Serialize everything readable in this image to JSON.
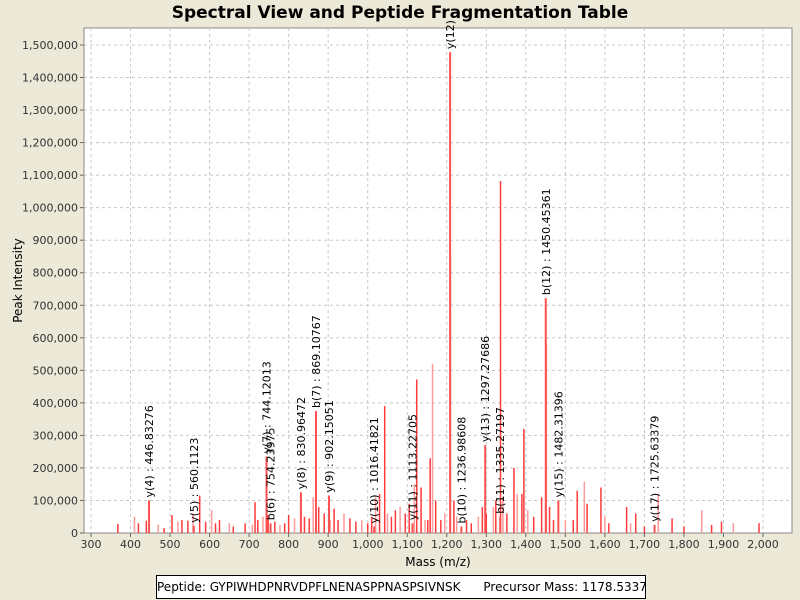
{
  "chart_data": {
    "type": "bar",
    "title": "Spectral View and Peptide Fragmentation Table",
    "xlabel": "Mass (m/z)",
    "ylabel": "Peak Intensity",
    "xlim": [
      280,
      2070
    ],
    "ylim": [
      0,
      1550000
    ],
    "xticks": [
      300,
      400,
      500,
      600,
      700,
      800,
      900,
      1000,
      1100,
      1200,
      1300,
      1400,
      1500,
      1600,
      1700,
      1800,
      1900,
      2000
    ],
    "yticks": [
      0,
      100000,
      200000,
      300000,
      400000,
      500000,
      600000,
      700000,
      800000,
      900000,
      1000000,
      1100000,
      1200000,
      1300000,
      1400000,
      1500000
    ],
    "grid": true,
    "colors": {
      "peak": "#ff3b3b",
      "peak_light": "#ff9a9a",
      "annotated": "#ff5050",
      "grid": "#c8c8c8"
    },
    "annotated_peaks": [
      {
        "label": "y(4) : 446.83276",
        "mz": 446.83,
        "intensity": 100000
      },
      {
        "label": "y(5) : 560.1123",
        "mz": 560.11,
        "intensity": 22000
      },
      {
        "label": "y(7) : 744.12013",
        "mz": 744.12,
        "intensity": 235000
      },
      {
        "label": "b(6) : 754.23975",
        "mz": 754.24,
        "intensity": 30000
      },
      {
        "label": "y(8) : 830.96472",
        "mz": 830.96,
        "intensity": 125000
      },
      {
        "label": "b(7) : 869.10767",
        "mz": 869.11,
        "intensity": 375000
      },
      {
        "label": "y(9) : 902.15051",
        "mz": 902.15,
        "intensity": 115000
      },
      {
        "label": "y(10) : 1016.41821",
        "mz": 1016.42,
        "intensity": 20000
      },
      {
        "label": "y(11) : 1113.22705",
        "mz": 1113.23,
        "intensity": 30000
      },
      {
        "label": "y(12)",
        "mz": 1208.5,
        "intensity": 1478000
      },
      {
        "label": "b(10) : 1236.98608",
        "mz": 1236.99,
        "intensity": 20000
      },
      {
        "label": "y(13) : 1297.27686",
        "mz": 1297.28,
        "intensity": 270000
      },
      {
        "label": "b(11) : 1335.27197",
        "mz": 1335.27,
        "intensity": 50000
      },
      {
        "label": "b(12) : 1450.45361",
        "mz": 1450.45,
        "intensity": 722000
      },
      {
        "label": "y(15) : 1482.31396",
        "mz": 1482.31,
        "intensity": 100000
      },
      {
        "label": "y(17) : 1725.63379",
        "mz": 1725.63,
        "intensity": 25000
      }
    ],
    "peaks": [
      [
        368,
        28000
      ],
      [
        410,
        50000
      ],
      [
        420,
        30000
      ],
      [
        440,
        38000
      ],
      [
        470,
        25000
      ],
      [
        485,
        15000
      ],
      [
        505,
        55000
      ],
      [
        520,
        35000
      ],
      [
        530,
        40000
      ],
      [
        545,
        38000
      ],
      [
        558,
        60000
      ],
      [
        575,
        115000
      ],
      [
        590,
        35000
      ],
      [
        605,
        70000
      ],
      [
        615,
        30000
      ],
      [
        625,
        40000
      ],
      [
        650,
        30000
      ],
      [
        660,
        20000
      ],
      [
        690,
        30000
      ],
      [
        708,
        25000
      ],
      [
        715,
        95000
      ],
      [
        722,
        40000
      ],
      [
        735,
        50000
      ],
      [
        748,
        55000
      ],
      [
        765,
        35000
      ],
      [
        778,
        25000
      ],
      [
        790,
        30000
      ],
      [
        800,
        55000
      ],
      [
        815,
        45000
      ],
      [
        840,
        50000
      ],
      [
        852,
        45000
      ],
      [
        862,
        110000
      ],
      [
        876,
        80000
      ],
      [
        890,
        60000
      ],
      [
        905,
        40000
      ],
      [
        915,
        75000
      ],
      [
        925,
        40000
      ],
      [
        940,
        60000
      ],
      [
        955,
        45000
      ],
      [
        970,
        35000
      ],
      [
        985,
        40000
      ],
      [
        1000,
        30000
      ],
      [
        1010,
        50000
      ],
      [
        1020,
        110000
      ],
      [
        1030,
        120000
      ],
      [
        1043,
        390000
      ],
      [
        1050,
        60000
      ],
      [
        1060,
        50000
      ],
      [
        1070,
        70000
      ],
      [
        1082,
        80000
      ],
      [
        1095,
        60000
      ],
      [
        1105,
        90000
      ],
      [
        1118,
        150000
      ],
      [
        1124,
        472000
      ],
      [
        1135,
        140000
      ],
      [
        1145,
        40000
      ],
      [
        1152,
        40000
      ],
      [
        1158,
        230000
      ],
      [
        1164,
        520000
      ],
      [
        1172,
        100000
      ],
      [
        1185,
        40000
      ],
      [
        1195,
        60000
      ],
      [
        1209,
        850000
      ],
      [
        1218,
        100000
      ],
      [
        1225,
        50000
      ],
      [
        1250,
        40000
      ],
      [
        1262,
        30000
      ],
      [
        1280,
        50000
      ],
      [
        1290,
        80000
      ],
      [
        1300,
        60000
      ],
      [
        1318,
        80000
      ],
      [
        1324,
        100000
      ],
      [
        1336,
        1082000
      ],
      [
        1342,
        110000
      ],
      [
        1352,
        60000
      ],
      [
        1370,
        200000
      ],
      [
        1378,
        120000
      ],
      [
        1390,
        120000
      ],
      [
        1395,
        320000
      ],
      [
        1405,
        70000
      ],
      [
        1420,
        50000
      ],
      [
        1440,
        110000
      ],
      [
        1452,
        580000
      ],
      [
        1460,
        80000
      ],
      [
        1470,
        40000
      ],
      [
        1500,
        40000
      ],
      [
        1520,
        40000
      ],
      [
        1530,
        130000
      ],
      [
        1548,
        158000
      ],
      [
        1555,
        90000
      ],
      [
        1590,
        140000
      ],
      [
        1600,
        50000
      ],
      [
        1610,
        30000
      ],
      [
        1655,
        80000
      ],
      [
        1665,
        30000
      ],
      [
        1678,
        60000
      ],
      [
        1700,
        20000
      ],
      [
        1735,
        120000
      ],
      [
        1770,
        45000
      ],
      [
        1800,
        20000
      ],
      [
        1845,
        70000
      ],
      [
        1870,
        25000
      ],
      [
        1895,
        35000
      ],
      [
        1925,
        30000
      ],
      [
        1990,
        30000
      ]
    ]
  },
  "legend": {
    "peptide": "Peptide: GYPIWHDPNRVDPFLNENASPPNASPSIVNSK",
    "precursor": "Precursor Mass: 1178.5337"
  }
}
